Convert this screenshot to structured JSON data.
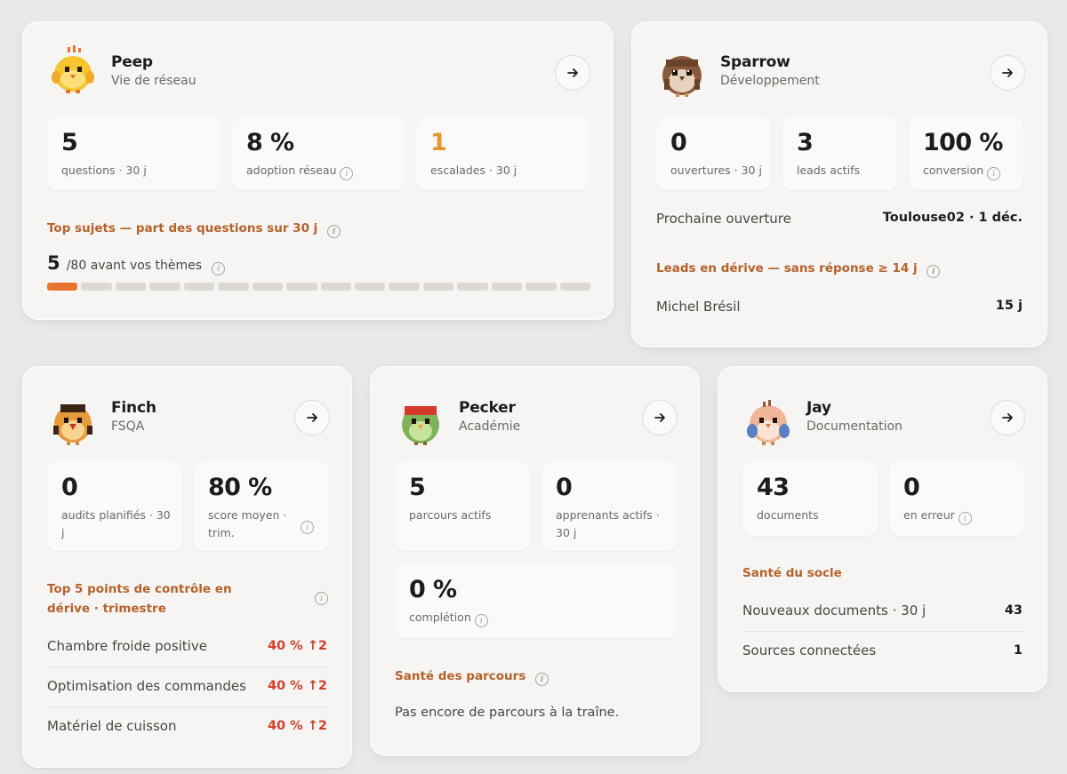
{
  "colors": {
    "accent_orange": "#e8742f",
    "section_title": "#b6622c",
    "drift_red": "#d4402b"
  },
  "cards": {
    "peep": {
      "name": "Peep",
      "role": "Vie de réseau",
      "avatar": "chick-avatar",
      "stats": [
        {
          "value": "5",
          "label": "questions · 30 j"
        },
        {
          "value": "8 %",
          "label": "adoption réseau"
        },
        {
          "value": "1",
          "label": "escalades · 30 j"
        }
      ],
      "section_title": "Top sujets — part des questions sur 30 j",
      "themes_count": "5",
      "themes_text": "/80 avant vos thèmes",
      "progress": {
        "filled": 1,
        "total": 16
      }
    },
    "sparrow": {
      "name": "Sparrow",
      "role": "Développement",
      "avatar": "sparrow-avatar",
      "stats": [
        {
          "value": "0",
          "label": "ouvertures · 30 j"
        },
        {
          "value": "3",
          "label": "leads actifs"
        },
        {
          "value": "100 %",
          "label": "conversion"
        }
      ],
      "next_opening_label": "Prochaine ouverture",
      "next_opening_value": "Toulouse02 · 1 déc.",
      "section_title": "Leads en dérive — sans réponse ≥ 14 j",
      "leads": [
        {
          "name": "Michel Brésil",
          "value": "15 j"
        }
      ]
    },
    "finch": {
      "name": "Finch",
      "role": "FSQA",
      "avatar": "finch-avatar",
      "stats": [
        {
          "value": "0",
          "label": "audits planifiés · 30 j"
        },
        {
          "value": "80 %",
          "label": "score moyen · trim."
        }
      ],
      "section_title": "Top 5 points de contrôle en dérive · trimestre",
      "rows": [
        {
          "label": "Chambre froide positive",
          "value": "40 % ↑2"
        },
        {
          "label": "Optimisation des commandes",
          "value": "40 % ↑2"
        },
        {
          "label": "Matériel de cuisson",
          "value": "40 % ↑2"
        }
      ]
    },
    "pecker": {
      "name": "Pecker",
      "role": "Académie",
      "avatar": "woodpecker-avatar",
      "stats": [
        {
          "value": "5",
          "label": "parcours actifs"
        },
        {
          "value": "0",
          "label": "apprenants actifs · 30 j"
        },
        {
          "value": "0 %",
          "label": "complétion"
        }
      ],
      "section_title": "Santé des parcours",
      "empty_text": "Pas encore de parcours à la traîne."
    },
    "jay": {
      "name": "Jay",
      "role": "Documentation",
      "avatar": "jay-avatar",
      "stats": [
        {
          "value": "43",
          "label": "documents"
        },
        {
          "value": "0",
          "label": "en erreur"
        }
      ],
      "section_title": "Santé du socle",
      "rows": [
        {
          "label": "Nouveaux documents · 30 j",
          "value": "43"
        },
        {
          "label": "Sources connectées",
          "value": "1"
        }
      ]
    }
  }
}
